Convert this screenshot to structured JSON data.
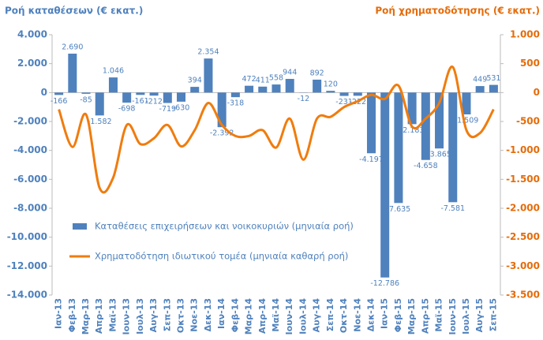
{
  "chart_data": {
    "type": "bar+line",
    "y_title": "Ροή καταθέσεων (€ εκατ.)",
    "y2_title": "Ροή χρηματοδότησης (€ εκατ.)",
    "categories": [
      "Ιαν-13",
      "Φεβ-13",
      "Μαρ-13",
      "Απρ-13",
      "Μαϊ-13",
      "Ιουν-13",
      "Ιουλ-13",
      "Αυγ-13",
      "Σεπ-13",
      "Οκτ-13",
      "Νοε-13",
      "Δεκ-13",
      "Ιαν-14",
      "Φεβ-14",
      "Μαρ-14",
      "Απρ-14",
      "Μαϊ-14",
      "Ιουν-14",
      "Ιουλ-14",
      "Αυγ-14",
      "Σεπ-14",
      "Οκτ-14",
      "Νοε-14",
      "Δεκ-14",
      "Ιαν-15",
      "Φεβ-15",
      "Μαρ-15",
      "Απρ-15",
      "Μαϊ-15",
      "Ιουν-15",
      "Ιουλ-15",
      "Αυγ-15",
      "Σεπ-15"
    ],
    "series": [
      {
        "name": "Καταθέσεις επιχειρήσεων και νοικοκυριών (μηνιαία ροή)",
        "type": "bar",
        "color": "#4f81bd",
        "values": [
          -166,
          2690,
          -85,
          -1582,
          1046,
          -698,
          -161,
          -212,
          -719,
          -630,
          394,
          2354,
          -2392,
          -318,
          472,
          411,
          558,
          944,
          -12,
          892,
          120,
          -231,
          -222,
          -4197,
          -12786,
          -7635,
          -2183,
          -4658,
          -3865,
          -7581,
          -1509,
          449,
          531
        ],
        "value_labels": [
          "-166",
          "2.690",
          "-85",
          "-1.582",
          "1.046",
          "-698",
          "-161",
          "-212",
          "-719",
          "-630",
          "394",
          "2.354",
          "-2.392",
          "-318",
          "472",
          "411",
          "558",
          "944",
          "-12",
          "892",
          "120",
          "-231",
          "-222",
          "-4.197",
          "-12.786",
          "-7.635",
          "-2.183",
          "-4.658",
          "-3.865",
          "-7.581",
          "-1.509",
          "449",
          "531"
        ]
      },
      {
        "name": "Χρηματοδότηση ιδιωτικού τομέα (μηνιαία καθαρή ροή)",
        "type": "line",
        "axis": "y2",
        "color": "#f07c0e",
        "values": [
          -290,
          -940,
          -380,
          -1650,
          -1470,
          -560,
          -890,
          -790,
          -560,
          -930,
          -650,
          -180,
          -560,
          -750,
          -750,
          -650,
          -950,
          -450,
          -1160,
          -450,
          -420,
          -250,
          -150,
          -40,
          -110,
          120,
          -590,
          -450,
          -180,
          440,
          -650,
          -700,
          -290
        ]
      }
    ],
    "ylim": [
      -14000,
      4000
    ],
    "yticks": [
      {
        "value": -14000,
        "label": "-14.000"
      },
      {
        "value": -12000,
        "label": "-12.000"
      },
      {
        "value": -10000,
        "label": "-10.000"
      },
      {
        "value": -8000,
        "label": "-8.000"
      },
      {
        "value": -6000,
        "label": "-6.000"
      },
      {
        "value": -4000,
        "label": "-4.000"
      },
      {
        "value": -2000,
        "label": "-2.000"
      },
      0,
      {
        "value": 2000,
        "label": "2.000"
      },
      {
        "value": 4000,
        "label": "4.000"
      }
    ],
    "y2lim": [
      -3500,
      1000
    ],
    "y2ticks": [
      {
        "value": -3500,
        "label": "-3.500"
      },
      {
        "value": -3000,
        "label": "-3.000"
      },
      {
        "value": -2500,
        "label": "-2.500"
      },
      {
        "value": -2000,
        "label": "-2.000"
      },
      {
        "value": -1500,
        "label": "-1.500"
      },
      {
        "value": -1000,
        "label": "-1.000"
      },
      -500,
      0,
      500,
      {
        "value": 1000,
        "label": "1.000"
      }
    ],
    "legend": "inside-bottom-left"
  }
}
